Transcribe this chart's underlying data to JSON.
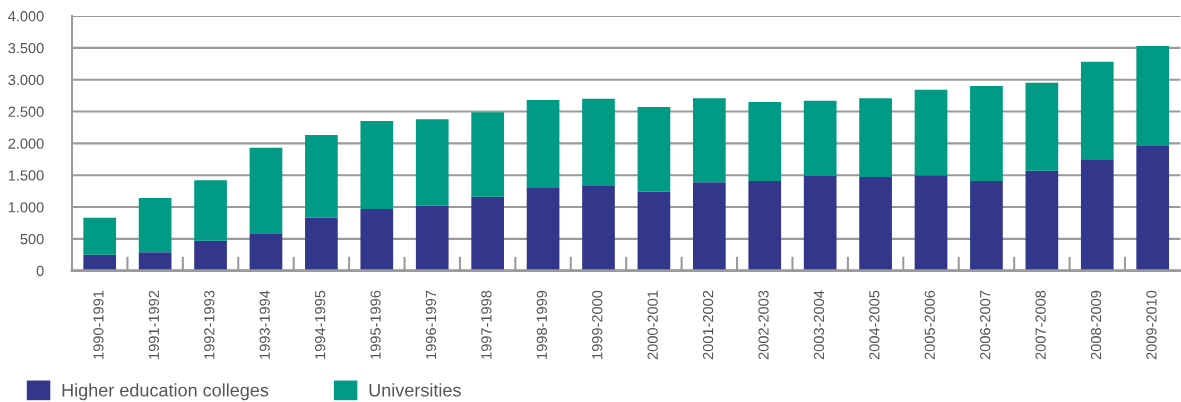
{
  "chart_data": {
    "type": "bar",
    "stacked": true,
    "categories": [
      "1990-1991",
      "1991-1992",
      "1992-1993",
      "1993-1994",
      "1994-1995",
      "1995-1996",
      "1996-1997",
      "1997-1998",
      "1998-1999",
      "1999-2000",
      "2000-2001",
      "2001-2002",
      "2002-2003",
      "2003-2004",
      "2004-2005",
      "2005-2006",
      "2006-2007",
      "2007-2008",
      "2008-2009",
      "2009-2010"
    ],
    "series": [
      {
        "name": "Higher education colleges",
        "color": "#32378b",
        "values": [
          250,
          290,
          470,
          590,
          830,
          970,
          1020,
          1160,
          1310,
          1330,
          1240,
          1390,
          1410,
          1490,
          1470,
          1500,
          1410,
          1570,
          1750,
          1960
        ]
      },
      {
        "name": "Universities",
        "color": "#009a85",
        "values": [
          580,
          850,
          950,
          1340,
          1300,
          1380,
          1360,
          1330,
          1370,
          1370,
          1330,
          1320,
          1240,
          1180,
          1240,
          1340,
          1490,
          1380,
          1530,
          1570
        ]
      }
    ],
    "ylim": [
      0,
      4000
    ],
    "yticks": [
      {
        "value": 0,
        "label": "0"
      },
      {
        "value": 500,
        "label": "500"
      },
      {
        "value": 1000,
        "label": "1.000"
      },
      {
        "value": 1500,
        "label": "1.500"
      },
      {
        "value": 2000,
        "label": "2.000"
      },
      {
        "value": 2500,
        "label": "2.500"
      },
      {
        "value": 3000,
        "label": "3.000"
      },
      {
        "value": 3500,
        "label": "3.500"
      },
      {
        "value": 4000,
        "label": "4.000"
      }
    ],
    "grid": "y",
    "legend": "bottom left"
  }
}
